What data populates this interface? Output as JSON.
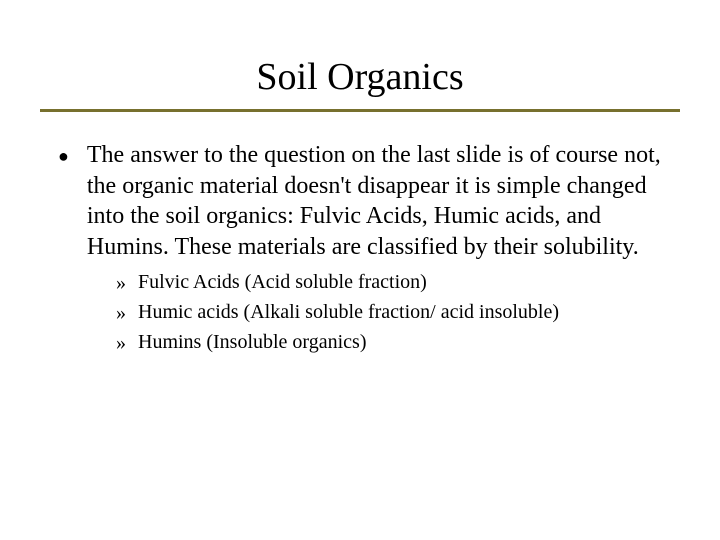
{
  "slide": {
    "title": "Soil Organics",
    "main_bullet": "The answer to the question on the last slide is of course not, the organic material doesn't disappear it is simple changed into the soil organics:  Fulvic Acids, Humic acids, and Humins.  These materials are classified by their solubility.",
    "sub_items": [
      "Fulvic Acids (Acid soluble fraction)",
      "Humic acids (Alkali soluble fraction/ acid insoluble)",
      "Humins (Insoluble organics)"
    ]
  },
  "style": {
    "divider_color": "#77702e",
    "text_color": "#000000",
    "background_color": "#ffffff",
    "title_fontsize": 38,
    "body_fontsize": 24,
    "sub_fontsize": 20
  }
}
